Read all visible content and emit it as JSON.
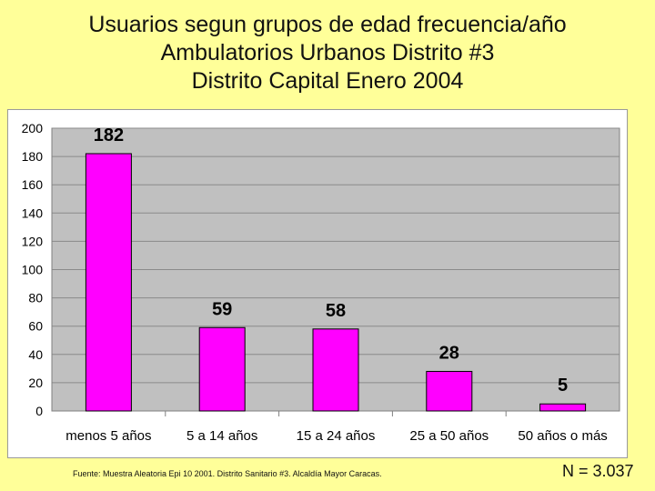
{
  "title_lines": [
    "Usuarios segun grupos de edad frecuencia/año",
    "Ambulatorios Urbanos Distrito #3",
    "Distrito Capital Enero 2004"
  ],
  "chart_data": {
    "type": "bar",
    "categories": [
      "menos 5 años",
      "5 a 14 años",
      "15 a 24 años",
      "25 a 50 años",
      "50 años o más"
    ],
    "values": [
      182,
      59,
      58,
      28,
      5
    ],
    "data_labels": [
      "182",
      "59",
      "58",
      "28",
      "5"
    ],
    "yticks": [
      0,
      20,
      40,
      60,
      80,
      100,
      120,
      140,
      160,
      180,
      200
    ],
    "ylim": [
      0,
      200
    ],
    "xlabel": "",
    "ylabel": "",
    "grid": true,
    "colors": {
      "bar_fill": "#ff00ff",
      "bar_edge": "#000000",
      "plot_bg": "#c0c0c0",
      "grid": "#8a8a8a"
    }
  },
  "source_note": "Fuente: Muestra Aleatoria Epi 10 2001. Distrito Sanitario #3. Alcaldía Mayor Caracas.",
  "n_total": "N = 3.037",
  "colors": {
    "page_bg": "#ffff99"
  }
}
